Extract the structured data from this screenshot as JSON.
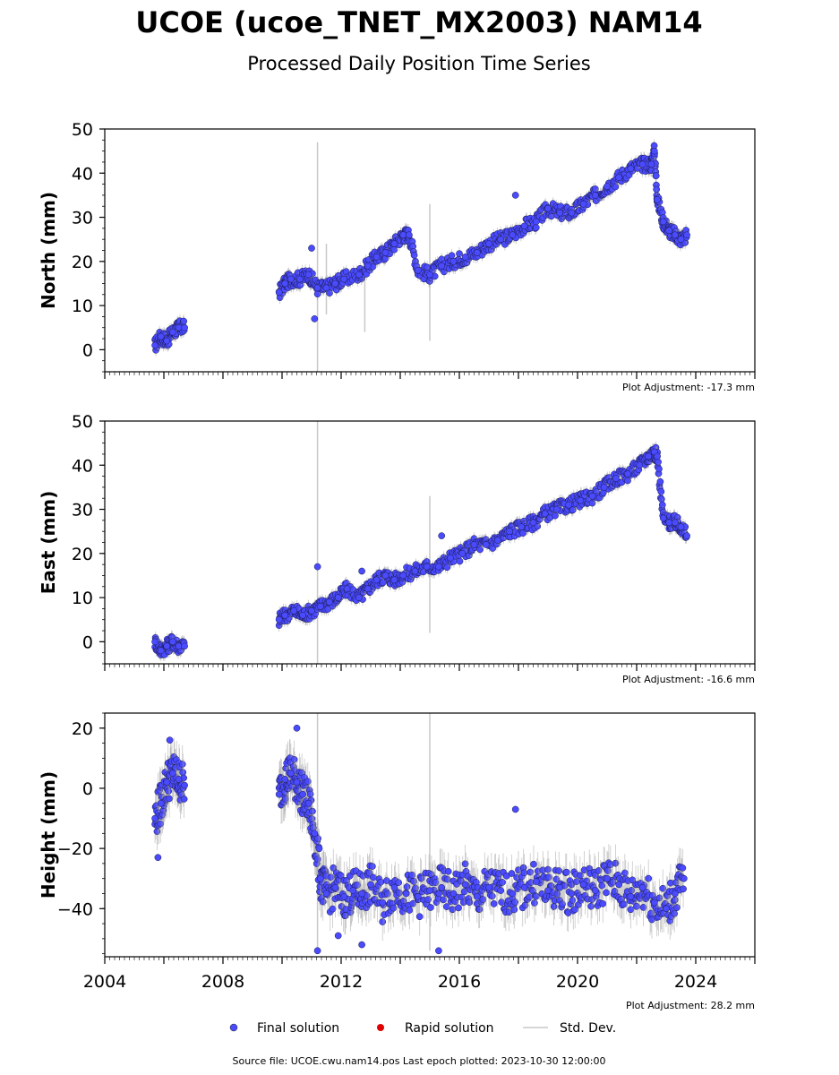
{
  "title": "UCOE (ucoe_TNET_MX2003) NAM14",
  "subtitle": "Processed Daily Position Time Series",
  "footer": "Source file: UCOE.cwu.nam14.pos  Last epoch plotted: 2023-10-30 12:00:00",
  "legend": {
    "final": "Final solution",
    "rapid": "Rapid solution",
    "std": "Std. Dev."
  },
  "colors": {
    "final": "#4a4aff",
    "rapid": "#e00000",
    "std": "#c8c8c8",
    "frame": "#000000"
  },
  "chart_data": [
    {
      "type": "scatter",
      "ylabel": "North (mm)",
      "adjustment": "Plot Adjustment: -17.3 mm",
      "xlim": [
        2004,
        2026
      ],
      "ylim": [
        -5,
        50
      ],
      "yticks": [
        0,
        10,
        20,
        30,
        40,
        50
      ],
      "series": [
        {
          "name": "Final solution",
          "x": [
            2005.7,
            2005.9,
            2006.1,
            2006.3,
            2006.5,
            2006.7,
            2009.9,
            2010.1,
            2010.3,
            2010.6,
            2010.9,
            2011.2,
            2011.5,
            2011.8,
            2012.1,
            2012.6,
            2012.9,
            2013.2,
            2013.5,
            2013.8,
            2014.1,
            2014.3,
            2014.6,
            2015.0,
            2015.4,
            2015.8,
            2016.2,
            2016.6,
            2017.0,
            2017.4,
            2017.8,
            2018.2,
            2018.6,
            2019.0,
            2019.4,
            2019.8,
            2020.2,
            2020.6,
            2021.0,
            2021.4,
            2021.8,
            2022.2,
            2022.5,
            2022.6,
            2022.7,
            2022.9,
            2023.1,
            2023.3,
            2023.5,
            2023.7
          ],
          "y": [
            1,
            3,
            2,
            4,
            5,
            5,
            13,
            15,
            16,
            16,
            17,
            14,
            14,
            15,
            16,
            17,
            19,
            21,
            22,
            24,
            26,
            26,
            18,
            17,
            19,
            20,
            21,
            22,
            24,
            25,
            26,
            28,
            29,
            32,
            31,
            31,
            33,
            35,
            37,
            39,
            41,
            42,
            42,
            45,
            34,
            29,
            27,
            26,
            25,
            26
          ]
        }
      ],
      "outliers": {
        "x": [
          2011.0,
          2011.1,
          2017.9
        ],
        "y": [
          23,
          7,
          35
        ]
      },
      "std_dev_lines": {
        "x": [
          2011.2,
          2012.8,
          2015.0,
          2011.5
        ],
        "low": [
          -5,
          4,
          2,
          8
        ],
        "high": [
          47,
          20,
          33,
          24
        ]
      }
    },
    {
      "type": "scatter",
      "ylabel": "East (mm)",
      "adjustment": "Plot Adjustment: -16.6 mm",
      "xlim": [
        2004,
        2026
      ],
      "ylim": [
        -5,
        50
      ],
      "yticks": [
        0,
        10,
        20,
        30,
        40,
        50
      ],
      "series": [
        {
          "name": "Final solution",
          "x": [
            2005.7,
            2005.9,
            2006.1,
            2006.3,
            2006.5,
            2006.7,
            2009.9,
            2010.1,
            2010.4,
            2010.7,
            2011.0,
            2011.3,
            2011.6,
            2011.9,
            2012.2,
            2012.6,
            2012.9,
            2013.2,
            2013.5,
            2013.8,
            2014.1,
            2014.5,
            2014.9,
            2015.3,
            2015.7,
            2016.1,
            2016.5,
            2016.9,
            2017.3,
            2017.7,
            2018.1,
            2018.5,
            2018.9,
            2019.3,
            2019.7,
            2020.1,
            2020.5,
            2020.9,
            2021.3,
            2021.7,
            2022.1,
            2022.4,
            2022.6,
            2022.7,
            2022.9,
            2023.1,
            2023.3,
            2023.5,
            2023.7
          ],
          "y": [
            0,
            -2,
            -1,
            0,
            -1,
            -1,
            5,
            6,
            7,
            6,
            7,
            8,
            9,
            10,
            12,
            10,
            12,
            14,
            15,
            14,
            15,
            16,
            17,
            17,
            19,
            20,
            22,
            22,
            23,
            25,
            26,
            27,
            29,
            30,
            31,
            32,
            33,
            35,
            37,
            38,
            40,
            42,
            43,
            42,
            28,
            27,
            27,
            26,
            24
          ]
        }
      ],
      "outliers": {
        "x": [
          2011.2,
          2012.7,
          2015.4
        ],
        "y": [
          17,
          16,
          24
        ]
      },
      "std_dev_lines": {
        "x": [
          2011.2,
          2015.0
        ],
        "low": [
          -5,
          2
        ],
        "high": [
          50,
          33
        ]
      }
    },
    {
      "type": "scatter",
      "ylabel": "Height (mm)",
      "adjustment": "Plot Adjustment: 28.2 mm",
      "xlim": [
        2004,
        2026
      ],
      "ylim": [
        -56,
        25
      ],
      "yticks": [
        -40,
        -20,
        0,
        20
      ],
      "xticks": [
        2004,
        2008,
        2012,
        2016,
        2020,
        2024
      ],
      "series": [
        {
          "name": "Final solution",
          "x": [
            2005.7,
            2005.9,
            2006.1,
            2006.3,
            2006.5,
            2006.7,
            2009.9,
            2010.1,
            2010.3,
            2010.5,
            2010.7,
            2010.9,
            2011.1,
            2011.3,
            2011.5,
            2011.8,
            2012.1,
            2012.4,
            2012.7,
            2013.0,
            2013.4,
            2013.8,
            2014.2,
            2014.6,
            2015.0,
            2015.4,
            2015.8,
            2016.2,
            2016.6,
            2017.0,
            2017.4,
            2017.8,
            2018.2,
            2018.6,
            2019.0,
            2019.4,
            2019.8,
            2020.2,
            2020.6,
            2021.0,
            2021.4,
            2021.8,
            2022.2,
            2022.6,
            2023.0,
            2023.3,
            2023.6
          ],
          "y": [
            -10,
            -5,
            2,
            5,
            3,
            1,
            -2,
            3,
            5,
            2,
            -2,
            -5,
            -15,
            -30,
            -35,
            -33,
            -36,
            -34,
            -35,
            -32,
            -38,
            -33,
            -35,
            -36,
            -34,
            -33,
            -35,
            -32,
            -36,
            -33,
            -34,
            -35,
            -33,
            -31,
            -34,
            -33,
            -35,
            -32,
            -34,
            -30,
            -32,
            -36,
            -33,
            -38,
            -40,
            -35,
            -30
          ]
        }
      ],
      "outliers": {
        "x": [
          2005.8,
          2006.2,
          2010.5,
          2011.2,
          2011.9,
          2017.9,
          2012.7,
          2015.3
        ],
        "y": [
          -23,
          16,
          20,
          -54,
          -49,
          -7,
          -52,
          -54
        ]
      },
      "std_dev_lines": {
        "x": [
          2011.2,
          2015.0
        ],
        "low": [
          -55,
          -54
        ],
        "high": [
          25,
          25
        ]
      }
    }
  ]
}
